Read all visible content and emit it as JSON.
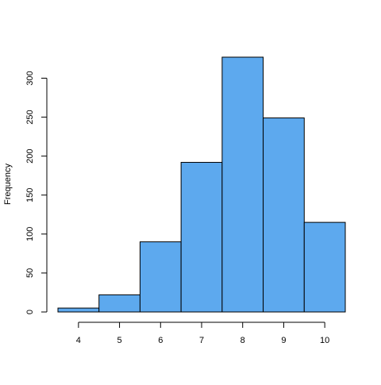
{
  "chart_data": {
    "type": "bar",
    "title": "",
    "xlabel": "",
    "ylabel": "Frequency",
    "bin_edges": [
      3.5,
      4.5,
      5.5,
      6.5,
      7.5,
      8.5,
      9.5,
      10.5
    ],
    "categories": [
      "4",
      "5",
      "6",
      "7",
      "8",
      "9",
      "10"
    ],
    "values": [
      5,
      22,
      90,
      192,
      327,
      249,
      115
    ],
    "x_ticks": [
      4,
      5,
      6,
      7,
      8,
      9,
      10
    ],
    "x_tick_labels": [
      "4",
      "5",
      "6",
      "7",
      "8",
      "9",
      "10"
    ],
    "y_ticks": [
      0,
      50,
      100,
      150,
      200,
      250,
      300
    ],
    "y_tick_labels": [
      "0",
      "50",
      "100",
      "150",
      "200",
      "250",
      "300"
    ],
    "xlim": [
      3.5,
      10.5
    ],
    "ylim": [
      0,
      327
    ],
    "grid": false,
    "legend": "none",
    "bar_color": "#5DA9EE",
    "bar_edge_color": "#000000"
  }
}
